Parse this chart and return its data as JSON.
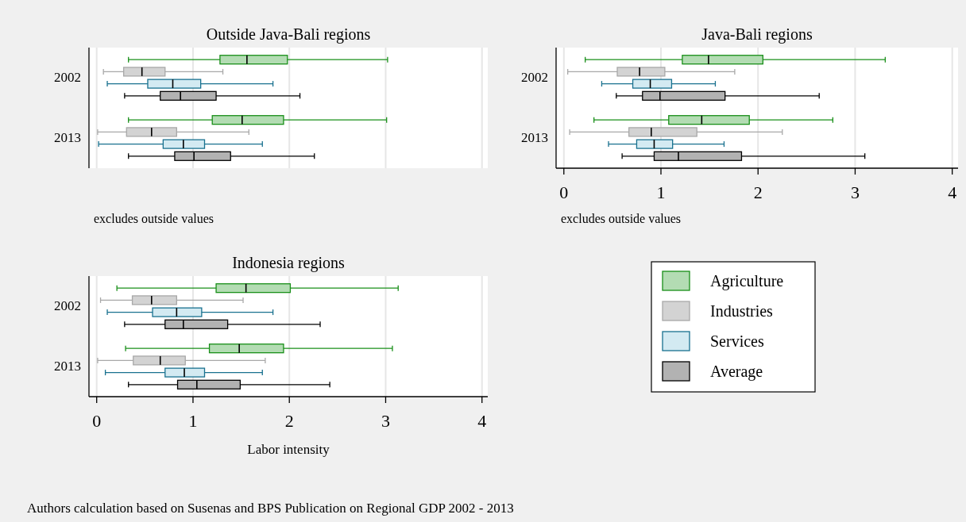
{
  "chart_data": [
    {
      "type": "box",
      "title": "Outside Java-Bali regions",
      "orientation": "horizontal",
      "categories": [
        "2002",
        "2013"
      ],
      "xlim": [
        -0.08,
        4.06
      ],
      "xticks": [
        0,
        1,
        2,
        3,
        4
      ],
      "tick_labels": "y",
      "grid": "x",
      "legend": false,
      "annotations": [
        "excludes outside values"
      ],
      "series": [
        {
          "color": "#b3dcb3",
          "boxes": [
            {
              "low": 0.33,
              "q1": 1.28,
              "median": 1.56,
              "q3": 1.98,
              "high": 3.02
            },
            {
              "low": 0.33,
              "q1": 1.2,
              "median": 1.51,
              "q3": 1.94,
              "high": 3.01
            }
          ]
        },
        {
          "color": "#d3d3d3",
          "boxes": [
            {
              "low": 0.07,
              "q1": 0.28,
              "median": 0.47,
              "q3": 0.71,
              "high": 1.31
            },
            {
              "low": 0.01,
              "q1": 0.31,
              "median": 0.57,
              "q3": 0.83,
              "high": 1.58
            }
          ]
        },
        {
          "color": "#d3eaf2",
          "boxes": [
            {
              "low": 0.11,
              "q1": 0.53,
              "median": 0.79,
              "q3": 1.08,
              "high": 1.83
            },
            {
              "low": 0.02,
              "q1": 0.69,
              "median": 0.9,
              "q3": 1.12,
              "high": 1.72
            }
          ]
        },
        {
          "color": "#b2b2b2",
          "boxes": [
            {
              "low": 0.29,
              "q1": 0.66,
              "median": 0.87,
              "q3": 1.24,
              "high": 2.11
            },
            {
              "low": 0.33,
              "q1": 0.81,
              "median": 1.01,
              "q3": 1.39,
              "high": 2.26
            }
          ]
        }
      ]
    },
    {
      "type": "box",
      "title": "Java-Bali regions",
      "orientation": "horizontal",
      "categories": [
        "2002",
        "2013"
      ],
      "xlim": [
        -0.08,
        4.06
      ],
      "xticks": [
        0,
        1,
        2,
        3,
        4
      ],
      "grid": "x",
      "legend": false,
      "annotations": [
        "excludes outside values"
      ],
      "series": [
        {
          "color": "#b3dcb3",
          "boxes": [
            {
              "low": 0.22,
              "q1": 1.22,
              "median": 1.49,
              "q3": 2.05,
              "high": 3.31
            },
            {
              "low": 0.31,
              "q1": 1.08,
              "median": 1.42,
              "q3": 1.91,
              "high": 2.77
            }
          ]
        },
        {
          "color": "#d3d3d3",
          "boxes": [
            {
              "low": 0.04,
              "q1": 0.55,
              "median": 0.78,
              "q3": 1.04,
              "high": 1.76
            },
            {
              "low": 0.06,
              "q1": 0.67,
              "median": 0.9,
              "q3": 1.37,
              "high": 2.25
            }
          ]
        },
        {
          "color": "#d3eaf2",
          "boxes": [
            {
              "low": 0.39,
              "q1": 0.71,
              "median": 0.89,
              "q3": 1.11,
              "high": 1.56
            },
            {
              "low": 0.46,
              "q1": 0.75,
              "median": 0.93,
              "q3": 1.12,
              "high": 1.65
            }
          ]
        },
        {
          "color": "#b2b2b2",
          "boxes": [
            {
              "low": 0.54,
              "q1": 0.81,
              "median": 0.99,
              "q3": 1.66,
              "high": 2.63
            },
            {
              "low": 0.6,
              "q1": 0.93,
              "median": 1.18,
              "q3": 1.83,
              "high": 3.1
            }
          ]
        }
      ]
    },
    {
      "type": "box",
      "title": "Indonesia regions",
      "xlabel": "Labor intensity",
      "orientation": "horizontal",
      "categories": [
        "2002",
        "2013"
      ],
      "xlim": [
        -0.08,
        4.06
      ],
      "xticks": [
        0,
        1,
        2,
        3,
        4
      ],
      "grid": "x",
      "legend": "right",
      "annotations": [
        "Authors calculation based on Susenas and BPS Publication on Regional GDP 2002 - 2013"
      ],
      "series": [
        {
          "name": "Agriculture",
          "color": "#b3dcb3",
          "boxes": [
            {
              "low": 0.21,
              "q1": 1.24,
              "median": 1.55,
              "q3": 2.01,
              "high": 3.13
            },
            {
              "low": 0.3,
              "q1": 1.17,
              "median": 1.48,
              "q3": 1.94,
              "high": 3.07
            }
          ]
        },
        {
          "name": "Industries",
          "color": "#d3d3d3",
          "boxes": [
            {
              "low": 0.04,
              "q1": 0.37,
              "median": 0.57,
              "q3": 0.83,
              "high": 1.52
            },
            {
              "low": 0.01,
              "q1": 0.38,
              "median": 0.66,
              "q3": 0.92,
              "high": 1.75
            }
          ]
        },
        {
          "name": "Services",
          "color": "#d3eaf2",
          "boxes": [
            {
              "low": 0.11,
              "q1": 0.58,
              "median": 0.83,
              "q3": 1.09,
              "high": 1.83
            },
            {
              "low": 0.09,
              "q1": 0.71,
              "median": 0.91,
              "q3": 1.12,
              "high": 1.72
            }
          ]
        },
        {
          "name": "Average",
          "color": "#b2b2b2",
          "boxes": [
            {
              "low": 0.29,
              "q1": 0.71,
              "median": 0.9,
              "q3": 1.36,
              "high": 2.32
            },
            {
              "low": 0.33,
              "q1": 0.84,
              "median": 1.04,
              "q3": 1.49,
              "high": 2.42
            }
          ]
        }
      ]
    }
  ]
}
